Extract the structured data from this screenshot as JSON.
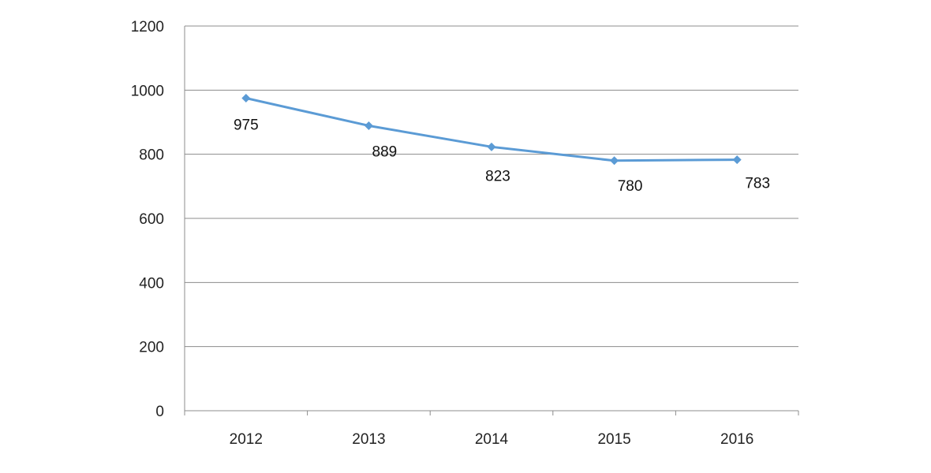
{
  "chart_data": {
    "type": "line",
    "categories": [
      "2012",
      "2013",
      "2014",
      "2015",
      "2016"
    ],
    "series": [
      {
        "values": [
          975,
          889,
          823,
          780,
          783
        ],
        "color": "#5b9bd5",
        "marker": "diamond"
      }
    ],
    "data_labels": [
      "975",
      "889",
      "823",
      "780",
      "783"
    ],
    "y_ticks": [
      "0",
      "200",
      "400",
      "600",
      "800",
      "1000",
      "1200"
    ],
    "ylim": [
      0,
      1200
    ],
    "grid": true,
    "legend": "none",
    "title": "",
    "xlabel": "",
    "ylabel": ""
  }
}
